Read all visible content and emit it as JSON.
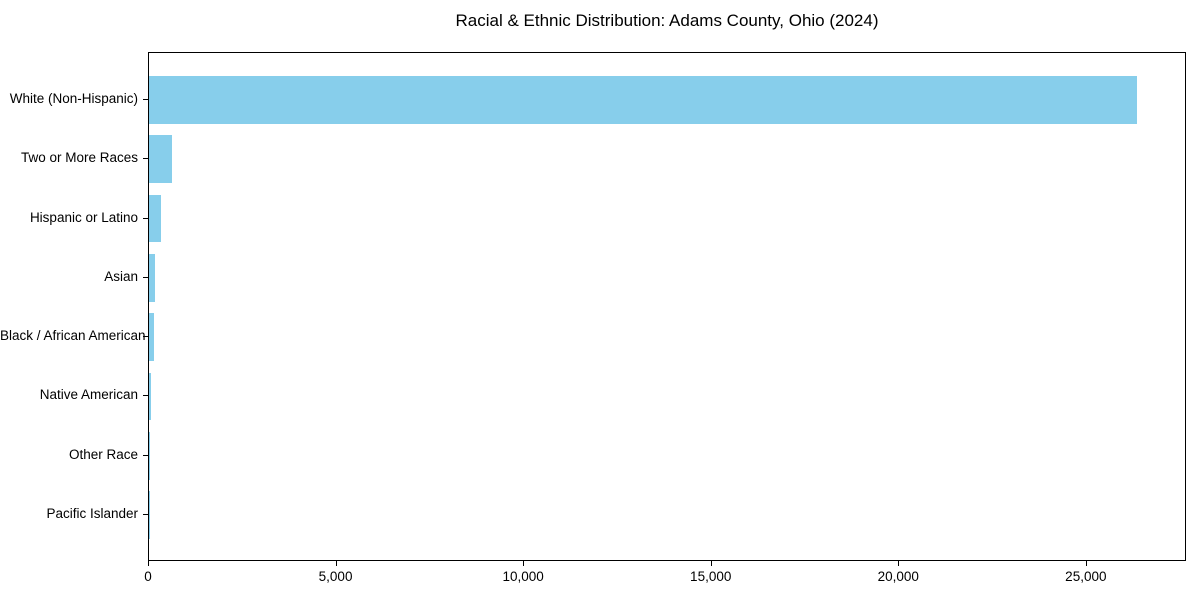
{
  "chart_data": {
    "type": "bar",
    "orientation": "horizontal",
    "title": "Racial & Ethnic Distribution: Adams County, Ohio (2024)",
    "categories": [
      "White (Non-Hispanic)",
      "Two or More Races",
      "Hispanic or Latino",
      "Asian",
      "Black / African American",
      "Native American",
      "Other Race",
      "Pacific Islander"
    ],
    "values": [
      26350,
      600,
      310,
      150,
      140,
      40,
      20,
      8
    ],
    "xlabel": "",
    "ylabel": "",
    "xlim": [
      0,
      27670
    ],
    "x_ticks": [
      0,
      5000,
      10000,
      15000,
      20000,
      25000
    ],
    "x_tick_labels": [
      "0",
      "5,000",
      "10,000",
      "15,000",
      "20,000",
      "25,000"
    ],
    "bar_color": "#87CEEB",
    "axes_color": "#000000",
    "background_color": "#ffffff",
    "grid": false,
    "legend": "none",
    "bar_height_fraction": 0.8
  }
}
